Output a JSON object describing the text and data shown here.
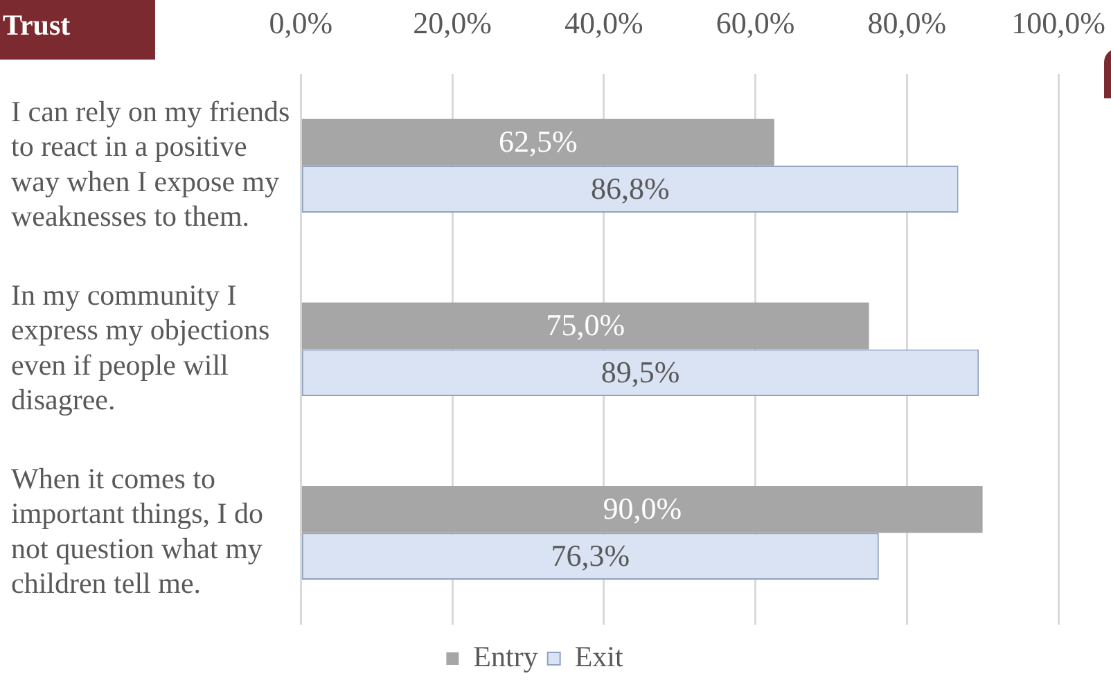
{
  "chart_data": {
    "type": "bar",
    "orientation": "horizontal",
    "title": "Trust",
    "categories": [
      "I can rely on my friends to react in a positive way when I expose my weaknesses to them.",
      "In my community I express my objections even if people will disagree.",
      "When it comes to important things, I do not question what my children tell me."
    ],
    "series": [
      {
        "name": "Entry",
        "color": "#a6a6a6",
        "values": [
          62.5,
          75.0,
          90.0
        ],
        "value_labels": [
          "62,5%",
          "75,0%",
          "90,0%"
        ]
      },
      {
        "name": "Exit",
        "color": "#dae3f3",
        "values": [
          86.8,
          89.5,
          76.3
        ],
        "value_labels": [
          "86,8%",
          "89,5%",
          "76,3%"
        ]
      }
    ],
    "xlim": [
      0,
      100
    ],
    "xticks": [
      {
        "value": 0,
        "label": "0,0%"
      },
      {
        "value": 20,
        "label": "20,0%"
      },
      {
        "value": 40,
        "label": "40,0%"
      },
      {
        "value": 60,
        "label": "60,0%"
      },
      {
        "value": 80,
        "label": "80,0%"
      },
      {
        "value": 100,
        "label": "100,0%"
      }
    ],
    "grid": "x",
    "legend": "bottom"
  }
}
